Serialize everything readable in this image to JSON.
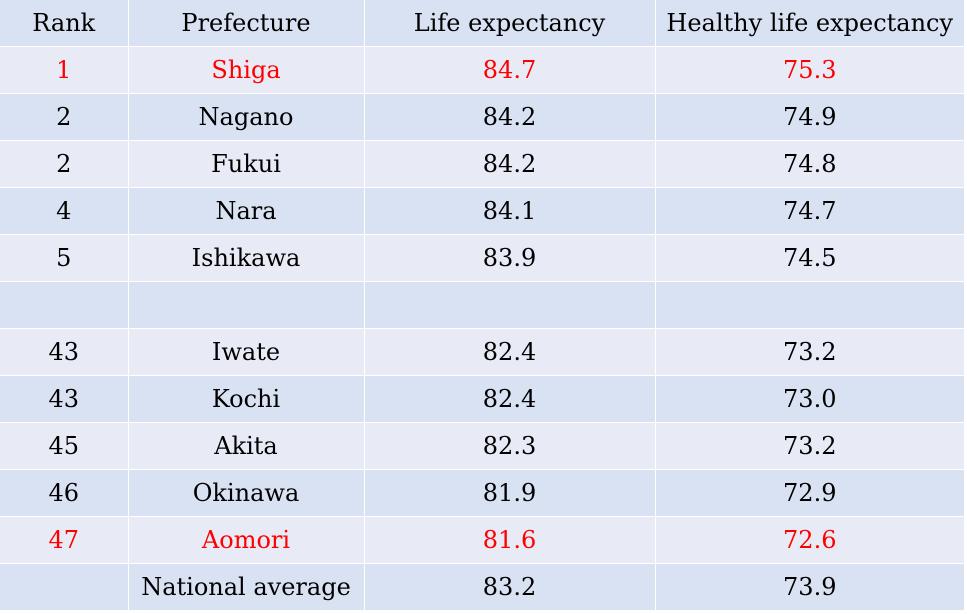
{
  "chart_data": {
    "type": "table",
    "columns": [
      "Rank",
      "Prefecture",
      "Life expectancy",
      "Healthy life expectancy"
    ],
    "rows": [
      {
        "rank": "1",
        "prefecture": "Shiga",
        "life_expectancy": "84.7",
        "healthy_life_expectancy": "75.3",
        "highlight": true
      },
      {
        "rank": "2",
        "prefecture": "Nagano",
        "life_expectancy": "84.2",
        "healthy_life_expectancy": "74.9",
        "highlight": false
      },
      {
        "rank": "2",
        "prefecture": "Fukui",
        "life_expectancy": "84.2",
        "healthy_life_expectancy": "74.8",
        "highlight": false
      },
      {
        "rank": "4",
        "prefecture": "Nara",
        "life_expectancy": "84.1",
        "healthy_life_expectancy": "74.7",
        "highlight": false
      },
      {
        "rank": "5",
        "prefecture": "Ishikawa",
        "life_expectancy": "83.9",
        "healthy_life_expectancy": "74.5",
        "highlight": false
      },
      {
        "rank": "",
        "prefecture": "",
        "life_expectancy": "",
        "healthy_life_expectancy": "",
        "highlight": false
      },
      {
        "rank": "43",
        "prefecture": "Iwate",
        "life_expectancy": "82.4",
        "healthy_life_expectancy": "73.2",
        "highlight": false
      },
      {
        "rank": "43",
        "prefecture": "Kochi",
        "life_expectancy": "82.4",
        "healthy_life_expectancy": "73.0",
        "highlight": false
      },
      {
        "rank": "45",
        "prefecture": "Akita",
        "life_expectancy": "82.3",
        "healthy_life_expectancy": "73.2",
        "highlight": false
      },
      {
        "rank": "46",
        "prefecture": "Okinawa",
        "life_expectancy": "81.9",
        "healthy_life_expectancy": "72.9",
        "highlight": false
      },
      {
        "rank": "47",
        "prefecture": "Aomori",
        "life_expectancy": "81.6",
        "healthy_life_expectancy": "72.6",
        "highlight": true
      },
      {
        "rank": "",
        "prefecture": "National average",
        "life_expectancy": "83.2",
        "healthy_life_expectancy": "73.9",
        "highlight": false
      }
    ]
  },
  "colors": {
    "header_background": "#d9e2f3",
    "row_light": "#e8ebf6",
    "row_dark": "#d9e2f3",
    "highlight_text": "#ff0000",
    "text": "#000000",
    "grid_lines": "#ffffff"
  }
}
